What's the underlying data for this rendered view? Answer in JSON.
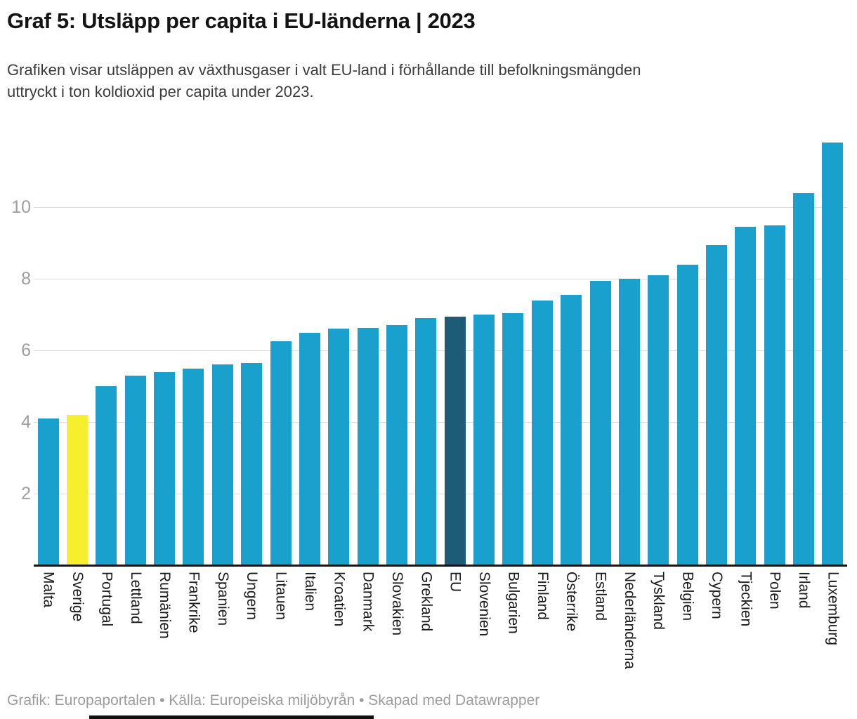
{
  "header": {
    "title": "Graf 5: Utsläpp per capita i EU-länderna | 2023",
    "subtitle_lines": [
      "Grafiken visar utsläppen av växthusgaser i valt EU-land i förhållande till befolkningsmängden",
      "uttryckt i ton koldioxid per capita under 2023."
    ]
  },
  "footer": {
    "text": "Grafik: Europaportalen • Källa: Europeiska miljöbyrån • Skapad med Datawrapper"
  },
  "colors": {
    "bar_default": "#1aa0cc",
    "bar_sweden_highlight": "#f6ef2d",
    "bar_eu_highlight": "#1d5b77",
    "gridline": "#dcdcdc",
    "axis": "#161616",
    "y_tick_text": "#9e9e9e",
    "x_label_text": "#1a1a1a",
    "footer_text": "#9c9c9c"
  },
  "chart_data": {
    "type": "bar",
    "title": "Graf 5: Utsläpp per capita i EU-länderna | 2023",
    "categories": [
      "Malta",
      "Sverige",
      "Portugal",
      "Lettland",
      "Rumänien",
      "Frankrike",
      "Spanien",
      "Ungern",
      "Litauen",
      "Italien",
      "Kroatien",
      "Danmark",
      "Slovakien",
      "Grekland",
      "EU",
      "Slovenien",
      "Bulgarien",
      "Finland",
      "Österrike",
      "Estland",
      "Nederländerna",
      "Tyskland",
      "Belgien",
      "Cypern",
      "Tjeckien",
      "Polen",
      "Irland",
      "Luxemburg"
    ],
    "values": [
      4.1,
      4.2,
      5.0,
      5.3,
      5.4,
      5.5,
      5.6,
      5.65,
      6.25,
      6.5,
      6.6,
      6.62,
      6.7,
      6.9,
      6.95,
      7.0,
      7.05,
      7.4,
      7.55,
      7.95,
      8.0,
      8.1,
      8.4,
      8.95,
      9.45,
      9.5,
      10.4,
      11.8
    ],
    "color_overrides": {
      "Sverige": "#f6ef2d",
      "EU": "#1d5b77"
    },
    "default_bar_color": "#1aa0cc",
    "yticks": [
      2,
      4,
      6,
      8,
      10
    ],
    "ylim": [
      0,
      12.06
    ],
    "grid": true,
    "legend": "none",
    "xlabel": "",
    "ylabel": ""
  }
}
